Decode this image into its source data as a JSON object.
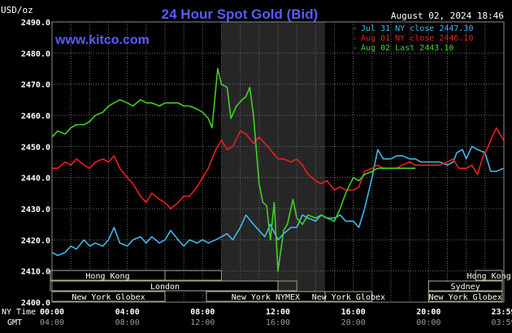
{
  "chart_data": {
    "type": "line",
    "title": "24 Hour Spot Gold (Bid)",
    "ylabel": "USD/oz",
    "watermark": "www.kitco.com",
    "timestamp": "August 02, 2024 18:46",
    "ylim": [
      2400,
      2490
    ],
    "yticks": [
      2400,
      2410,
      2420,
      2430,
      2440,
      2450,
      2460,
      2470,
      2480,
      2490
    ],
    "ytick_labels": [
      "2400.0",
      "2410.0",
      "2420.0",
      "2430.0",
      "2440.0",
      "2450.0",
      "2460.0",
      "2470.0",
      "2480.0",
      "2490.0"
    ],
    "xlim": [
      0,
      24
    ],
    "x_axis_ny_label": "NY Time",
    "x_axis_gmt_label": "GMT",
    "xticks": [
      0,
      4,
      8,
      12,
      16,
      20,
      23.98
    ],
    "xtick_ny_labels": [
      "00:00",
      "04:00",
      "08:00",
      "12:00",
      "16:00",
      "20:00",
      "23:59"
    ],
    "xtick_gmt_labels": [
      "04:00",
      "08:00",
      "12:00",
      "16:00",
      "20:00",
      "00:00",
      "03:59"
    ],
    "grid": true,
    "legend_position": "top-right",
    "shaded_region": [
      9,
      14.5
    ],
    "sessions": [
      {
        "label": "Hong Kong",
        "row": 0,
        "start": -1,
        "end": 6
      },
      {
        "label": "Hong Kong",
        "row": 0,
        "start": 22.5,
        "end": 26
      },
      {
        "label": "London",
        "row": 1,
        "start": 0,
        "end": 12
      },
      {
        "label": "Sydney",
        "row": 1,
        "start": 20,
        "end": 26
      },
      {
        "label": "New York Globex",
        "row": 2,
        "start": 0,
        "end": 6
      },
      {
        "label": "New York NYMEX",
        "row": 2,
        "start": 8.2,
        "end": 14.5
      },
      {
        "label": "New York Globex",
        "row": 2,
        "start": 14.5,
        "end": 17
      },
      {
        "label": "New York Globex",
        "row": 2,
        "start": 20,
        "end": 26
      }
    ],
    "session_extra_boxes": [
      {
        "row": 0,
        "start": 6,
        "end": 9
      },
      {
        "row": 1,
        "start": -1,
        "end": 0
      },
      {
        "row": 1,
        "start": 12,
        "end": 13
      }
    ],
    "series": [
      {
        "name": "Jul 31 NY close 2447.30",
        "color": "#40b8ea",
        "x": [
          0,
          0.3,
          0.7,
          1,
          1.3,
          1.7,
          2,
          2.3,
          2.7,
          3,
          3.3,
          3.6,
          4,
          4.3,
          4.7,
          5,
          5.3,
          5.7,
          6,
          6.3,
          6.7,
          7,
          7.3,
          7.7,
          8,
          8.3,
          8.7,
          9,
          9.3,
          9.6,
          10,
          10.3,
          10.7,
          11,
          11.3,
          11.6,
          12,
          12.3,
          12.7,
          13,
          13.3,
          13.6,
          14,
          14.3,
          14.6,
          15,
          15.3,
          15.6,
          16,
          16.3,
          16.6,
          17,
          17.3,
          17.6,
          18,
          18.3,
          18.6,
          19,
          19.3,
          19.6,
          20,
          20.3,
          20.6,
          21,
          21.3,
          21.5,
          21.8,
          22,
          22.3,
          22.6,
          23,
          23.3,
          23.6,
          23.98
        ],
        "y": [
          2416,
          2415,
          2416,
          2418,
          2417,
          2420,
          2418,
          2419,
          2418,
          2420,
          2424,
          2419,
          2418,
          2420,
          2421,
          2419,
          2421,
          2419,
          2420,
          2423,
          2420,
          2418,
          2420,
          2419,
          2420,
          2419,
          2420,
          2421,
          2422,
          2420,
          2424,
          2428,
          2425,
          2423,
          2421,
          2425,
          2420,
          2422,
          2424,
          2424,
          2428,
          2427,
          2426,
          2428,
          2427,
          2427,
          2428,
          2426,
          2426,
          2424,
          2430,
          2440,
          2449,
          2446,
          2446,
          2447,
          2447,
          2446,
          2446,
          2445,
          2445,
          2445,
          2445,
          2444,
          2445,
          2448,
          2449,
          2446,
          2450,
          2449,
          2448,
          2442,
          2442,
          2443
        ]
      },
      {
        "name": "Aug 01 NY close 2446.10",
        "color": "#e82020",
        "x": [
          0,
          0.3,
          0.7,
          1,
          1.3,
          1.7,
          2,
          2.3,
          2.7,
          3,
          3.3,
          3.6,
          4,
          4.3,
          4.7,
          5,
          5.3,
          5.7,
          6,
          6.3,
          6.7,
          7,
          7.3,
          7.7,
          8,
          8.3,
          8.7,
          9,
          9.3,
          9.6,
          10,
          10.3,
          10.7,
          11,
          11.3,
          11.6,
          12,
          12.3,
          12.7,
          13,
          13.3,
          13.6,
          14,
          14.3,
          14.6,
          15,
          15.3,
          15.6,
          16,
          16.3,
          16.6,
          17,
          17.3,
          17.6,
          18,
          18.3,
          18.6,
          19,
          19.3,
          19.6,
          20,
          20.3,
          20.6,
          21,
          21.3,
          21.6,
          22,
          22.3,
          22.6,
          22.9,
          23.1,
          23.3,
          23.6,
          23.98
        ],
        "y": [
          2443,
          2443,
          2445,
          2444,
          2446,
          2444,
          2443,
          2445,
          2446,
          2445,
          2447,
          2443,
          2440,
          2438,
          2434,
          2432,
          2435,
          2433,
          2432,
          2430,
          2432,
          2434,
          2434,
          2437,
          2440,
          2443,
          2449,
          2452,
          2449,
          2450,
          2455,
          2454,
          2451,
          2453,
          2451,
          2449,
          2446,
          2446,
          2445,
          2446,
          2444,
          2441,
          2439,
          2438,
          2439,
          2436,
          2437,
          2436,
          2436,
          2437,
          2442,
          2443,
          2444,
          2443,
          2443,
          2443,
          2444,
          2445,
          2444,
          2444,
          2444,
          2444,
          2444,
          2445,
          2446,
          2443,
          2443,
          2444,
          2441,
          2447,
          2449,
          2452,
          2456,
          2452
        ]
      },
      {
        "name": "Aug 02 Last 2443.10",
        "color": "#40d020",
        "x": [
          0,
          0.3,
          0.7,
          1,
          1.3,
          1.7,
          2,
          2.3,
          2.7,
          3,
          3.3,
          3.6,
          4,
          4.3,
          4.7,
          5,
          5.3,
          5.7,
          6,
          6.3,
          6.7,
          7,
          7.3,
          7.7,
          8,
          8.3,
          8.5,
          8.8,
          9,
          9.3,
          9.5,
          9.8,
          10.1,
          10.3,
          10.5,
          10.7,
          11,
          11.2,
          11.4,
          11.6,
          11.8,
          12,
          12.3,
          12.5,
          12.8,
          13,
          13.3,
          13.6,
          14,
          14.3,
          14.6,
          15,
          15.3,
          15.6,
          16,
          16.3,
          16.6,
          17,
          17.3,
          17.6,
          18,
          18.3,
          18.6,
          19,
          19.3
        ],
        "y": [
          2453,
          2455,
          2454,
          2456,
          2457,
          2457,
          2458,
          2460,
          2461,
          2463,
          2464,
          2465,
          2464,
          2463,
          2465,
          2464,
          2464,
          2463,
          2464,
          2464,
          2464,
          2463,
          2463,
          2462,
          2461,
          2459,
          2456,
          2475,
          2470,
          2469,
          2459,
          2463,
          2465,
          2466,
          2469,
          2460,
          2438,
          2432,
          2431,
          2420,
          2432,
          2410,
          2423,
          2425,
          2433,
          2427,
          2425,
          2428,
          2427,
          2428,
          2427,
          2426,
          2430,
          2435,
          2440,
          2439,
          2441,
          2442,
          2443,
          2443,
          2443,
          2443,
          2443,
          2443,
          2443
        ]
      }
    ]
  }
}
